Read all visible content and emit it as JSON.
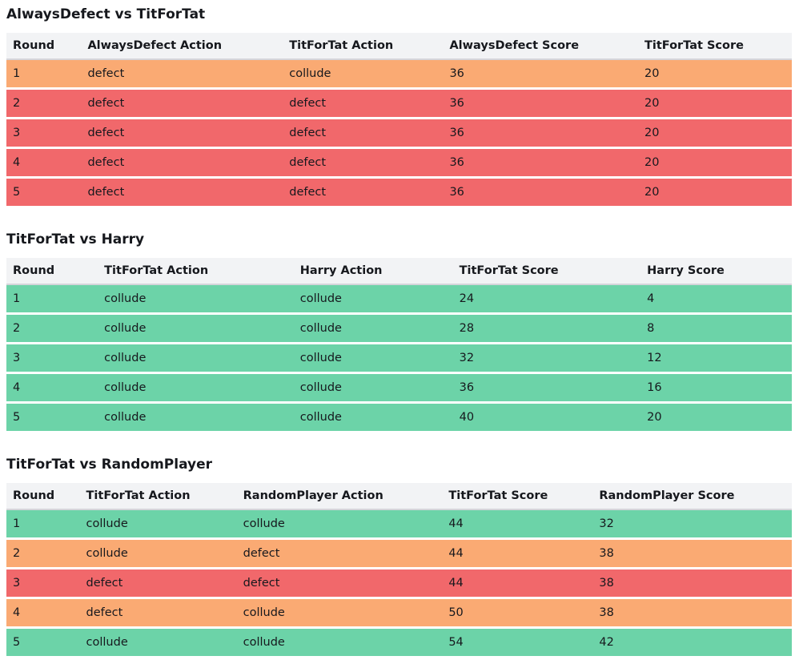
{
  "page": {
    "background": "#ffffff",
    "text_color": "#16181d"
  },
  "colors": {
    "row_green": "#6cd3a8",
    "row_orange": "#faaa73",
    "row_red": "#f1686b",
    "header_bg": "#f2f3f5",
    "header_border": "#d5d5da",
    "row_separator": "#ffffff"
  },
  "tables": [
    {
      "title": "AlwaysDefect vs TitForTat",
      "columns": [
        "Round",
        "AlwaysDefect Action",
        "TitForTat Action",
        "AlwaysDefect Score",
        "TitForTat Score"
      ],
      "rows": [
        {
          "cells": [
            "1",
            "defect",
            "collude",
            "36",
            "20"
          ],
          "color": "orange"
        },
        {
          "cells": [
            "2",
            "defect",
            "defect",
            "36",
            "20"
          ],
          "color": "red"
        },
        {
          "cells": [
            "3",
            "defect",
            "defect",
            "36",
            "20"
          ],
          "color": "red"
        },
        {
          "cells": [
            "4",
            "defect",
            "defect",
            "36",
            "20"
          ],
          "color": "red"
        },
        {
          "cells": [
            "5",
            "defect",
            "defect",
            "36",
            "20"
          ],
          "color": "red"
        }
      ]
    },
    {
      "title": "TitForTat vs Harry",
      "columns": [
        "Round",
        "TitForTat Action",
        "Harry Action",
        "TitForTat Score",
        "Harry Score"
      ],
      "rows": [
        {
          "cells": [
            "1",
            "collude",
            "collude",
            "24",
            "4"
          ],
          "color": "green"
        },
        {
          "cells": [
            "2",
            "collude",
            "collude",
            "28",
            "8"
          ],
          "color": "green"
        },
        {
          "cells": [
            "3",
            "collude",
            "collude",
            "32",
            "12"
          ],
          "color": "green"
        },
        {
          "cells": [
            "4",
            "collude",
            "collude",
            "36",
            "16"
          ],
          "color": "green"
        },
        {
          "cells": [
            "5",
            "collude",
            "collude",
            "40",
            "20"
          ],
          "color": "green"
        }
      ]
    },
    {
      "title": "TitForTat vs RandomPlayer",
      "columns": [
        "Round",
        "TitForTat Action",
        "RandomPlayer Action",
        "TitForTat Score",
        "RandomPlayer Score"
      ],
      "rows": [
        {
          "cells": [
            "1",
            "collude",
            "collude",
            "44",
            "32"
          ],
          "color": "green"
        },
        {
          "cells": [
            "2",
            "collude",
            "defect",
            "44",
            "38"
          ],
          "color": "orange"
        },
        {
          "cells": [
            "3",
            "defect",
            "defect",
            "44",
            "38"
          ],
          "color": "red"
        },
        {
          "cells": [
            "4",
            "defect",
            "collude",
            "50",
            "38"
          ],
          "color": "orange"
        },
        {
          "cells": [
            "5",
            "collude",
            "collude",
            "54",
            "42"
          ],
          "color": "green"
        }
      ]
    }
  ]
}
